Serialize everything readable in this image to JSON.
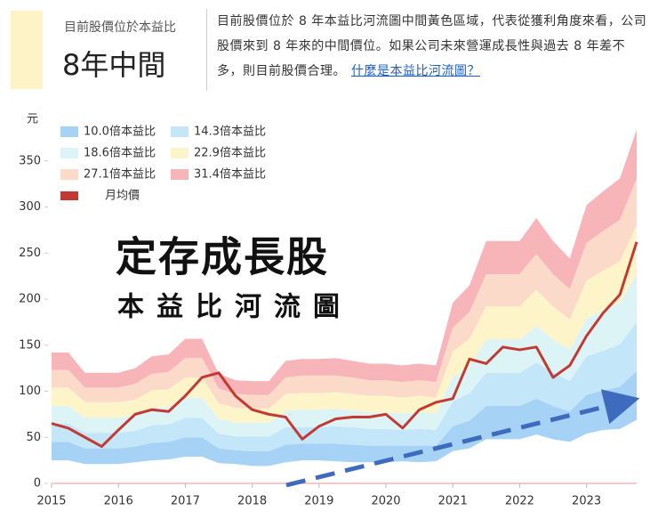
{
  "header": {
    "label": "目前股價位於本益比",
    "value": "8年中間",
    "description": "目前股價位於 8 年本益比河流圖中間黃色區域，代表從獲利角度來看，公司股價來到 8 年來的中間價位。如果公司未來營運成長性與過去 8 年差不多，則目前股價合理。",
    "link": "什麼是本益比河流圖？"
  },
  "chart_data": {
    "type": "river",
    "title": "定存成長股",
    "subtitle": "本益比河流圖",
    "y_label": "元",
    "x": [
      2015,
      2015.25,
      2015.5,
      2015.75,
      2016,
      2016.25,
      2016.5,
      2016.75,
      2017,
      2017.25,
      2017.5,
      2017.75,
      2018,
      2018.25,
      2018.5,
      2018.75,
      2019,
      2019.25,
      2019.5,
      2019.75,
      2020,
      2020.25,
      2020.5,
      2020.75,
      2021,
      2021.25,
      2021.5,
      2021.75,
      2022,
      2022.25,
      2022.5,
      2022.75,
      2023,
      2023.25,
      2023.5,
      2023.75
    ],
    "series": [
      {
        "name": "10.0倍本益比",
        "color": "#a6d3f5",
        "values": [
          45,
          45,
          38,
          38,
          38,
          40,
          44,
          45,
          50,
          50,
          38,
          36,
          35,
          35,
          42,
          43,
          43,
          43,
          42,
          41,
          41,
          41,
          41,
          41,
          62,
          68,
          84,
          84,
          84,
          92,
          84,
          78,
          96,
          101,
          105,
          122
        ]
      },
      {
        "name": "14.3倍本益比",
        "color": "#c3e6f8",
        "values": [
          65,
          65,
          55,
          55,
          55,
          57,
          63,
          64,
          71,
          71,
          54,
          51,
          51,
          51,
          61,
          61,
          61,
          62,
          61,
          59,
          59,
          58,
          59,
          58,
          89,
          98,
          120,
          120,
          120,
          131,
          120,
          111,
          138,
          144,
          151,
          175
        ]
      },
      {
        "name": "18.6倍本益比",
        "color": "#dcf4f6",
        "values": [
          84,
          84,
          71,
          71,
          71,
          74,
          82,
          83,
          93,
          93,
          70,
          66,
          66,
          66,
          79,
          80,
          80,
          81,
          79,
          77,
          77,
          76,
          77,
          76,
          116,
          127,
          156,
          156,
          156,
          171,
          156,
          145,
          179,
          188,
          196,
          227
        ]
      },
      {
        "name": "22.9倍本益比",
        "color": "#fdf5c9",
        "values": [
          104,
          104,
          88,
          88,
          88,
          91,
          101,
          102,
          115,
          115,
          87,
          82,
          81,
          81,
          97,
          98,
          98,
          99,
          97,
          95,
          95,
          93,
          95,
          93,
          143,
          157,
          192,
          192,
          192,
          210,
          192,
          178,
          220,
          231,
          241,
          280
        ]
      },
      {
        "name": "27.1倍本益比",
        "color": "#fbdac9",
        "values": [
          123,
          123,
          104,
          104,
          104,
          108,
          119,
          121,
          136,
          136,
          103,
          97,
          96,
          96,
          115,
          117,
          117,
          117,
          115,
          112,
          112,
          110,
          112,
          110,
          169,
          186,
          227,
          227,
          227,
          249,
          227,
          211,
          261,
          274,
          286,
          331
        ]
      },
      {
        "name": "31.4倍本益比",
        "color": "#f7b5b9",
        "values": [
          142,
          142,
          120,
          120,
          120,
          125,
          138,
          140,
          157,
          157,
          119,
          112,
          111,
          111,
          133,
          135,
          135,
          136,
          133,
          130,
          130,
          128,
          130,
          128,
          196,
          215,
          263,
          263,
          263,
          288,
          263,
          244,
          302,
          317,
          331,
          384
        ]
      },
      {
        "name": "月均價",
        "color": "#c23a34",
        "type": "line",
        "values": [
          65,
          60,
          50,
          40,
          58,
          75,
          80,
          78,
          95,
          115,
          120,
          95,
          80,
          75,
          72,
          48,
          62,
          70,
          72,
          72,
          75,
          60,
          80,
          88,
          92,
          135,
          130,
          148,
          145,
          148,
          115,
          128,
          160,
          185,
          205,
          262
        ]
      }
    ],
    "xlim": [
      2015,
      2023.75
    ],
    "xticks": [
      2015,
      2016,
      2017,
      2018,
      2019,
      2020,
      2021,
      2022,
      2023
    ],
    "ylim": [
      0,
      400
    ],
    "yticks": [
      0,
      50,
      100,
      150,
      200,
      250,
      300,
      350
    ],
    "grid": false,
    "legend": "upper left"
  }
}
